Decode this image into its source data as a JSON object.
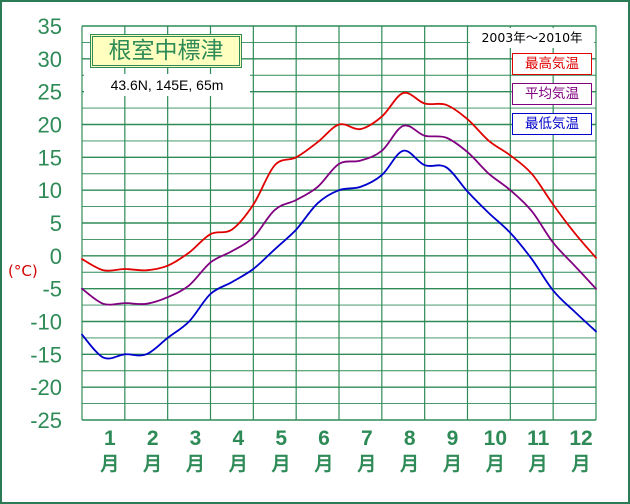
{
  "station": {
    "name": "根室中標津",
    "coordinates": "43.6N,  145E,  65m",
    "period": "2003年〜2010年"
  },
  "colors": {
    "background": "#ffffff",
    "frame": "#2d7a57",
    "grid": "#2e8b57",
    "axis_text": "#2e8b57",
    "unit_text": "#d40000",
    "max": "#e00000",
    "avg": "#800080",
    "min": "#0000cc"
  },
  "chart_data": {
    "type": "line",
    "ylabel": "(°C)",
    "ylim": [
      -25,
      35
    ],
    "y_ticks": [
      "35",
      "30",
      "25",
      "20",
      "15",
      "10",
      "5",
      "0",
      "-5",
      "-10",
      "-15",
      "-20",
      "-25"
    ],
    "y_tick_values": [
      35,
      30,
      25,
      20,
      15,
      10,
      5,
      0,
      -5,
      -10,
      -15,
      -20,
      -25
    ],
    "x_range": [
      0,
      12
    ],
    "x_ticks": [
      {
        "num": "1",
        "unit": "月"
      },
      {
        "num": "2",
        "unit": "月"
      },
      {
        "num": "3",
        "unit": "月"
      },
      {
        "num": "4",
        "unit": "月"
      },
      {
        "num": "5",
        "unit": "月"
      },
      {
        "num": "6",
        "unit": "月"
      },
      {
        "num": "7",
        "unit": "月"
      },
      {
        "num": "8",
        "unit": "月"
      },
      {
        "num": "9",
        "unit": "月"
      },
      {
        "num": "10",
        "unit": "月"
      },
      {
        "num": "11",
        "unit": "月"
      },
      {
        "num": "12",
        "unit": "月"
      }
    ],
    "grid": true,
    "legend_position": "top-right",
    "series": [
      {
        "name": "最高気温",
        "color": "#e00000",
        "x": [
          0,
          0.5,
          1,
          1.5,
          2,
          2.5,
          3,
          3.5,
          4,
          4.5,
          5,
          5.5,
          6,
          6.5,
          7,
          7.5,
          8,
          8.5,
          9,
          9.5,
          10,
          10.5,
          11,
          11.5,
          12
        ],
        "y": [
          -0.5,
          -2.2,
          -2,
          -2.2,
          -1.5,
          0.5,
          3.3,
          4,
          7.8,
          13.8,
          15,
          17.3,
          20,
          19.3,
          21.2,
          24.8,
          23.2,
          23,
          20.8,
          17.5,
          15.3,
          12.5,
          7.8,
          3.5,
          -0.3
        ]
      },
      {
        "name": "平均気温",
        "color": "#800080",
        "x": [
          0,
          0.5,
          1,
          1.5,
          2,
          2.5,
          3,
          3.5,
          4,
          4.5,
          5,
          5.5,
          6,
          6.5,
          7,
          7.5,
          8,
          8.5,
          9,
          9.5,
          10,
          10.5,
          11,
          11.5,
          12
        ],
        "y": [
          -5,
          -7.3,
          -7.2,
          -7.3,
          -6.3,
          -4.5,
          -1,
          0.7,
          2.8,
          7,
          8.5,
          10.5,
          14,
          14.5,
          16,
          19.8,
          18.3,
          18,
          15.8,
          12.5,
          10,
          6.8,
          2,
          -1.5,
          -5
        ]
      },
      {
        "name": "最低気温",
        "color": "#0000cc",
        "x": [
          0,
          0.5,
          1,
          1.5,
          2,
          2.5,
          3,
          3.5,
          4,
          4.5,
          5,
          5.5,
          6,
          6.5,
          7,
          7.5,
          8,
          8.5,
          9,
          9.5,
          10,
          10.5,
          11,
          11.5,
          12
        ],
        "y": [
          -12,
          -15.5,
          -15,
          -15,
          -12.5,
          -10,
          -5.8,
          -4,
          -2,
          1,
          4,
          8,
          10,
          10.5,
          12.3,
          16,
          13.8,
          13.5,
          9.8,
          6.5,
          3.5,
          -0.5,
          -5.3,
          -8.5,
          -11.5
        ]
      }
    ]
  }
}
